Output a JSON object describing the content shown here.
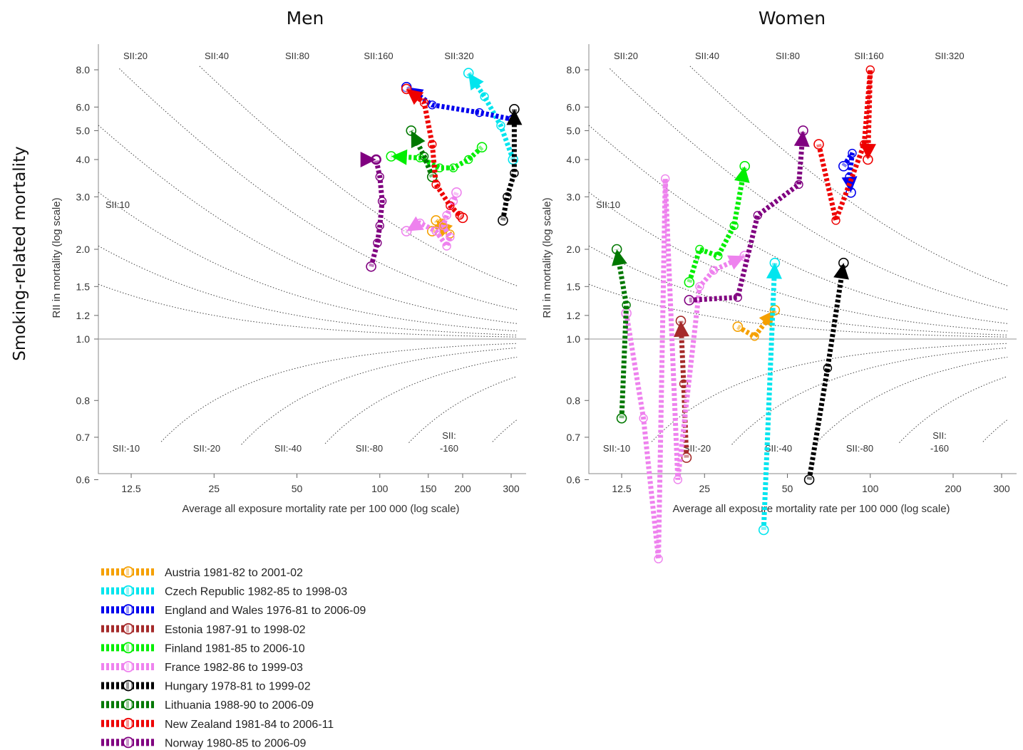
{
  "colors": {
    "Austria": "#f5a000",
    "Czech Republic": "#00e5ee",
    "England and Wales": "#0000ee",
    "Estonia": "#a52a2a",
    "Finland": "#00ee00",
    "France": "#ee82ee",
    "Hungary": "#000000",
    "Lithuania": "#007800",
    "New Zealand": "#ee0000",
    "Norway": "#800080"
  },
  "y_super_label": "Smoking-related mortality",
  "chart_data": [
    {
      "type": "line",
      "title": "Men",
      "xlabel": "Average all exposure mortality rate per 100 000 (log scale)",
      "ylabel": "RII in mortality (log scale)",
      "x_scale": "log",
      "y_scale": "log",
      "xlim": [
        9.5,
        340
      ],
      "ylim": [
        0.39,
        10.6
      ],
      "x_ticks": [
        12.5,
        25,
        50,
        100,
        150,
        200,
        300
      ],
      "x_tick_labels": [
        "12.5",
        "25",
        "50",
        "100",
        "150",
        "200",
        "300"
      ],
      "y_ticks": [
        0.6,
        0.7,
        0.8,
        1.0,
        1.2,
        1.5,
        2.0,
        3.0,
        4.0,
        5.0,
        6.0,
        8.0
      ],
      "y_tick_labels": [
        "0.6",
        "0.7",
        "0.8",
        "1.0",
        "1.2",
        "1.5",
        "2.0",
        "3.0",
        "4.0",
        "5.0",
        "6.0",
        "8.0"
      ],
      "sii_top": [
        "SII:20",
        "SII:40",
        "SII:80",
        "SII:160",
        "SII:320"
      ],
      "sii_side": "SII:10",
      "sii_bottom": [
        "SII:-10",
        "SII:-20",
        "SII:-40",
        "SII:-80",
        "SII:",
        "-160"
      ],
      "series": [
        {
          "name": "Austria",
          "x": [
            155,
            168,
            180,
            160
          ],
          "y": [
            2.3,
            2.45,
            2.25,
            2.5
          ]
        },
        {
          "name": "Czech Republic",
          "x": [
            305,
            275,
            240,
            210
          ],
          "y": [
            4.0,
            5.2,
            6.5,
            7.8
          ]
        },
        {
          "name": "England and Wales",
          "x": [
            305,
            230,
            155,
            125
          ],
          "y": [
            5.45,
            5.75,
            6.1,
            7.0
          ]
        },
        {
          "name": "Finland",
          "x": [
            235,
            210,
            185,
            165,
            140,
            110
          ],
          "y": [
            4.4,
            4.0,
            3.75,
            3.75,
            4.05,
            4.1
          ]
        },
        {
          "name": "France",
          "x": [
            190,
            185,
            175,
            170,
            180,
            175,
            160,
            140,
            125
          ],
          "y": [
            3.1,
            2.9,
            2.6,
            2.4,
            2.2,
            2.05,
            2.3,
            2.45,
            2.3
          ]
        },
        {
          "name": "Hungary",
          "x": [
            280,
            290,
            308,
            308
          ],
          "y": [
            2.5,
            3.0,
            3.6,
            5.9
          ]
        },
        {
          "name": "Lithuania",
          "x": [
            155,
            145,
            130
          ],
          "y": [
            3.5,
            4.1,
            5.0
          ]
        },
        {
          "name": "New Zealand",
          "x": [
            200,
            195,
            180,
            160,
            155,
            145,
            125
          ],
          "y": [
            2.55,
            2.6,
            2.8,
            3.3,
            4.5,
            6.2,
            6.9
          ]
        },
        {
          "name": "Norway",
          "x": [
            93,
            98,
            100,
            102,
            100,
            97,
            97
          ],
          "y": [
            1.75,
            2.1,
            2.4,
            2.9,
            3.5,
            4.0,
            4.0
          ]
        }
      ]
    },
    {
      "type": "line",
      "title": "Women",
      "xlabel": "Average all exposure mortality rate per 100 000 (log scale)",
      "ylabel": "RII in mortality (log scale)",
      "x_scale": "log",
      "y_scale": "log",
      "xlim": [
        9.5,
        340
      ],
      "ylim": [
        0.39,
        10.6
      ],
      "x_ticks": [
        12.5,
        25,
        50,
        100,
        200,
        300
      ],
      "x_tick_labels": [
        "12.5",
        "25",
        "50",
        "100",
        "200",
        "300"
      ],
      "y_ticks": [
        0.6,
        0.7,
        0.8,
        1.0,
        1.2,
        1.5,
        2.0,
        3.0,
        4.0,
        5.0,
        6.0,
        8.0
      ],
      "y_tick_labels": [
        "0.6",
        "0.7",
        "0.8",
        "1.0",
        "1.2",
        "1.5",
        "2.0",
        "3.0",
        "4.0",
        "5.0",
        "6.0",
        "8.0"
      ],
      "sii_top": [
        "SII:20",
        "SII:40",
        "SII:80",
        "SII:160",
        "SII:320"
      ],
      "sii_side": "SII:10",
      "sii_bottom": [
        "SII:-10",
        "SII:-20",
        "SII:-40",
        "SII:-80",
        "SII:",
        "-160"
      ],
      "series": [
        {
          "name": "Austria",
          "x": [
            33,
            38,
            45
          ],
          "y": [
            1.1,
            1.02,
            1.25
          ]
        },
        {
          "name": "Czech Republic",
          "x": [
            41,
            45
          ],
          "y": [
            0.5,
            1.8
          ]
        },
        {
          "name": "England and Wales",
          "x": [
            80,
            86,
            84,
            85
          ],
          "y": [
            3.8,
            4.2,
            3.5,
            3.1
          ]
        },
        {
          "name": "Estonia",
          "x": [
            21.5,
            21,
            20.5
          ],
          "y": [
            0.65,
            0.85,
            1.15
          ]
        },
        {
          "name": "Finland",
          "x": [
            22,
            24,
            28,
            32,
            35
          ],
          "y": [
            1.55,
            2.0,
            1.9,
            2.4,
            3.8
          ]
        },
        {
          "name": "France",
          "x": [
            13,
            15,
            17,
            18,
            20,
            24,
            27,
            35
          ],
          "y": [
            1.22,
            0.75,
            0.45,
            3.45,
            0.6,
            1.5,
            1.7,
            1.9
          ]
        },
        {
          "name": "Hungary",
          "x": [
            60,
            70,
            80
          ],
          "y": [
            0.6,
            0.9,
            1.8
          ]
        },
        {
          "name": "Lithuania",
          "x": [
            12.5,
            13,
            12
          ],
          "y": [
            0.75,
            1.3,
            2.0
          ]
        },
        {
          "name": "New Zealand",
          "x": [
            65,
            75,
            95,
            100,
            98
          ],
          "y": [
            4.5,
            2.5,
            4.5,
            8.0,
            4.0
          ]
        },
        {
          "name": "Norway",
          "x": [
            22,
            33,
            39,
            55,
            57
          ],
          "y": [
            1.35,
            1.38,
            2.6,
            3.3,
            5.0
          ]
        }
      ]
    }
  ],
  "legend": [
    {
      "key": "Austria",
      "label": "Austria 1981-82 to 2001-02"
    },
    {
      "key": "Czech Republic",
      "label": "Czech Republic 1982-85 to 1998-03"
    },
    {
      "key": "England and Wales",
      "label": "England and Wales 1976-81 to 2006-09"
    },
    {
      "key": "Estonia",
      "label": "Estonia 1987-91 to 1998-02"
    },
    {
      "key": "Finland",
      "label": "Finland 1981-85 to 2006-10"
    },
    {
      "key": "France",
      "label": "France 1982-86 to 1999-03"
    },
    {
      "key": "Hungary",
      "label": "Hungary 1978-81 to 1999-02"
    },
    {
      "key": "Lithuania",
      "label": "Lithuania 1988-90 to 2006-09"
    },
    {
      "key": "New Zealand",
      "label": "New Zealand 1981-84 to 2006-11"
    },
    {
      "key": "Norway",
      "label": "Norway 1980-85 to 2006-09"
    }
  ]
}
